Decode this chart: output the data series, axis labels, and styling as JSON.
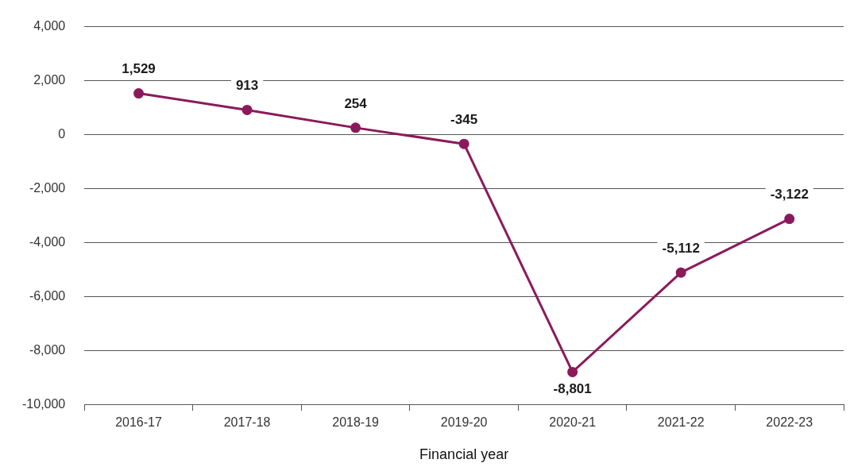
{
  "chart_data": {
    "type": "line",
    "xlabel": "Financial year",
    "categories": [
      "2016-17",
      "2017-18",
      "2018-19",
      "2019-20",
      "2020-21",
      "2021-22",
      "2022-23"
    ],
    "series": [
      {
        "color": "#8b1a5b",
        "values": [
          1529,
          913,
          254,
          -345,
          -8801,
          -5112,
          -3122
        ],
        "value_labels": [
          "1,529",
          "913",
          "254",
          "-345",
          "-8,801",
          "-5,112",
          "-3,122"
        ]
      }
    ],
    "ylim": [
      -10000,
      4000
    ],
    "yticks": [
      {
        "value": -10000,
        "label": "-10,000"
      },
      {
        "value": -8000,
        "label": "-8,000"
      },
      {
        "value": -6000,
        "label": "-6,000"
      },
      {
        "value": -4000,
        "label": "-4,000"
      },
      {
        "value": -2000,
        "label": "-2,000"
      },
      {
        "value": 0,
        "label": "0"
      },
      {
        "value": 2000,
        "label": "2,000"
      },
      {
        "value": 4000,
        "label": "4,000"
      }
    ],
    "grid": "y",
    "legend": false,
    "marker": "circle",
    "line_style": "solid"
  }
}
